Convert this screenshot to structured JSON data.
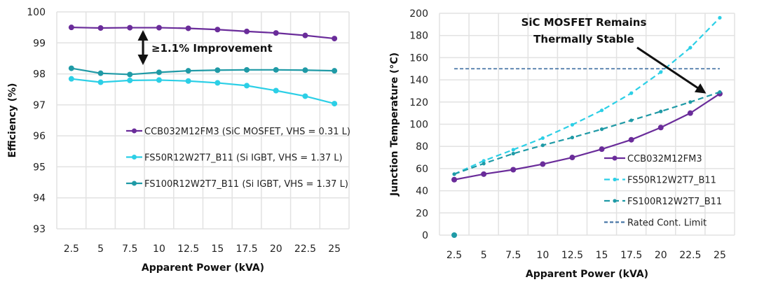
{
  "colors": {
    "ccb": "#6a2c9a",
    "fs50": "#2ccfe6",
    "fs100": "#1f9aa6",
    "limit": "#4a78a8",
    "grid": "#e2e2e2"
  },
  "chart_data": [
    {
      "type": "line",
      "categories": [
        "2.5",
        "5",
        "7.5",
        "10",
        "12.5",
        "15",
        "17.5",
        "20",
        "22.5",
        "25"
      ],
      "xlabel": "Apparent Power (kVA)",
      "ylabel": "Efficiency (%)",
      "ylim": [
        93,
        100
      ],
      "yticks": [
        "93",
        "94",
        "95",
        "96",
        "97",
        "98",
        "99",
        "100"
      ],
      "grid": true,
      "legend": "center-right",
      "annotation": "≥1.1% Improvement",
      "series": [
        {
          "name": "CCB032M12FM3 (SiC MOSFET, VHS = 0.31 L)",
          "color_key": "ccb",
          "values": [
            99.5,
            99.48,
            99.49,
            99.49,
            99.47,
            99.43,
            99.37,
            99.32,
            99.24,
            99.14
          ]
        },
        {
          "name": "FS50R12W2T7_B11 (Si IGBT, VHS = 1.37 L)",
          "color_key": "fs50",
          "values": [
            97.84,
            97.73,
            97.79,
            97.8,
            97.77,
            97.71,
            97.62,
            97.46,
            97.28,
            97.04
          ]
        },
        {
          "name": "FS100R12W2T7_B11 (Si IGBT, VHS = 1.37 L)",
          "color_key": "fs100",
          "values": [
            98.18,
            98.02,
            97.98,
            98.05,
            98.1,
            98.12,
            98.13,
            98.13,
            98.12,
            98.1
          ]
        }
      ]
    },
    {
      "type": "line",
      "categories": [
        "2.5",
        "5",
        "7.5",
        "10",
        "12.5",
        "15",
        "17.5",
        "20",
        "22.5",
        "25"
      ],
      "xlabel": "Apparent Power (kVA)",
      "ylabel": "Junction Temperature (°C)",
      "ylim": [
        0,
        200
      ],
      "yticks": [
        "0",
        "20",
        "40",
        "60",
        "80",
        "100",
        "120",
        "140",
        "160",
        "180",
        "200"
      ],
      "grid": true,
      "legend": "bottom-right",
      "annotation": [
        "SiC MOSFET Remains",
        "Thermally Stable"
      ],
      "series": [
        {
          "name": "CCB032M12FM3",
          "color_key": "ccb",
          "style": "solid",
          "values": [
            50,
            55,
            59,
            64,
            70,
            77.5,
            86,
            97,
            110,
            127.5
          ]
        },
        {
          "name": "FS50R12W2T7_B11",
          "color_key": "fs50",
          "style": "dashed",
          "values": [
            55,
            67,
            77,
            87.5,
            99.5,
            112.5,
            128,
            147,
            169,
            196
          ]
        },
        {
          "name": "FS100R12W2T7_B11",
          "color_key": "fs100",
          "style": "dashed",
          "values": [
            55,
            64.5,
            73.5,
            81,
            88,
            95.5,
            103.5,
            111.5,
            120,
            129
          ]
        },
        {
          "name": "Rated Cont. Limit",
          "color_key": "limit",
          "style": "dotted",
          "values": [
            150,
            150,
            150,
            150,
            150,
            150,
            150,
            150,
            150,
            150
          ]
        }
      ],
      "extra_points": [
        {
          "x": "2.5",
          "y": 0,
          "color_key": "fs100"
        }
      ]
    }
  ]
}
